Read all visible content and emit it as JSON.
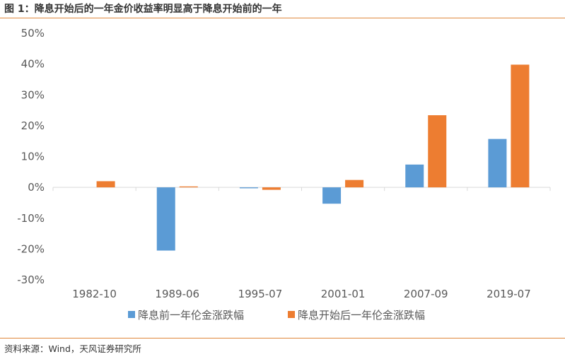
{
  "figure": {
    "title": "图 1：降息开始后的一年金价收益率明显高于降息开始前的一年",
    "source": "资料来源：Wind，天风证券研究所"
  },
  "colors": {
    "accent_rule": "#e0873a",
    "series_before": "#5b9bd5",
    "series_after": "#ed7d31",
    "axis": "#d9d9d9",
    "text": "#595959"
  },
  "chart_data": {
    "type": "bar",
    "categories": [
      "1982-10",
      "1989-06",
      "1995-07",
      "2001-01",
      "2007-09",
      "2019-07"
    ],
    "series": [
      {
        "name": "降息前一年伦金涨跌幅",
        "values": [
          0,
          -20.5,
          -0.3,
          -5.3,
          7.4,
          15.7
        ]
      },
      {
        "name": "降息开始后一年伦金涨跌幅",
        "values": [
          2.0,
          0.3,
          -0.8,
          2.4,
          23.4,
          39.8
        ]
      }
    ],
    "yticks": [
      "50%",
      "40%",
      "30%",
      "20%",
      "10%",
      "0%",
      "-10%",
      "-20%",
      "-30%"
    ],
    "ylim": [
      -30,
      50
    ],
    "grid": false,
    "legend_position": "bottom"
  }
}
